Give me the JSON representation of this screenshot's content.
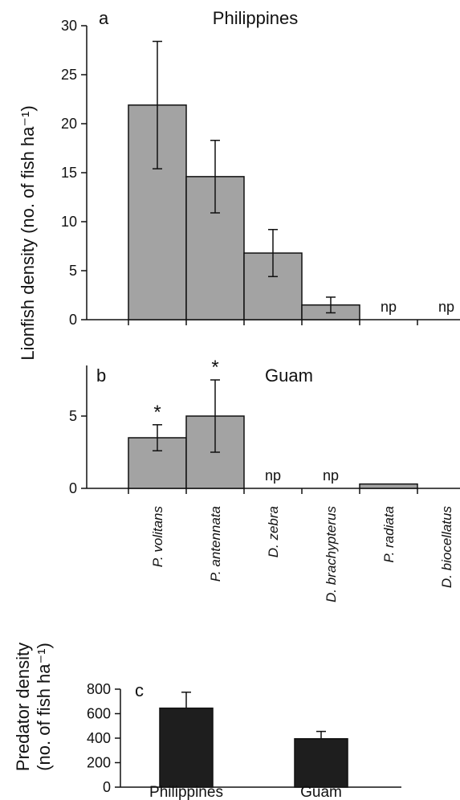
{
  "chart_data": [
    {
      "type": "bar",
      "panel_letter": "a",
      "title": "Philippines",
      "ylabel": "Lionfish density (no. of fish ha⁻¹)",
      "categories": [
        "P. volitans",
        "P. antennata",
        "D. zebra",
        "D. brachypterus",
        "P. radiata",
        "D. biocellatus"
      ],
      "values": [
        21.9,
        14.6,
        6.8,
        1.5,
        null,
        null
      ],
      "errors": [
        6.5,
        3.7,
        2.4,
        0.8,
        null,
        null
      ],
      "annotations": [
        "",
        "",
        "",
        "",
        "np",
        "np"
      ],
      "ylim": [
        0,
        30
      ],
      "yticks": [
        0,
        5,
        10,
        15,
        20,
        25,
        30
      ],
      "bar_color": "#a3a3a3"
    },
    {
      "type": "bar",
      "panel_letter": "b",
      "title": "Guam",
      "categories": [
        "P. volitans",
        "P. antennata",
        "D. zebra",
        "D. brachypterus",
        "P. radiata",
        "D. biocellatus"
      ],
      "values": [
        3.5,
        5.0,
        null,
        null,
        0.3,
        null
      ],
      "errors": [
        0.9,
        2.5,
        null,
        null,
        null,
        null
      ],
      "annotations": [
        "*",
        "*",
        "np",
        "np",
        "",
        ""
      ],
      "ylim": [
        0,
        8.5
      ],
      "yticks": [
        0,
        5
      ],
      "bar_color": "#a3a3a3"
    },
    {
      "type": "bar",
      "panel_letter": "c",
      "ylabel": [
        "Predator density",
        "(no. of fish ha⁻¹)"
      ],
      "categories": [
        "Philippines",
        "Guam"
      ],
      "values": [
        645,
        395
      ],
      "errors": [
        130,
        60
      ],
      "ylim": [
        0,
        800
      ],
      "yticks": [
        0,
        200,
        400,
        600,
        800
      ],
      "bar_color": "#1e1e1e"
    }
  ]
}
